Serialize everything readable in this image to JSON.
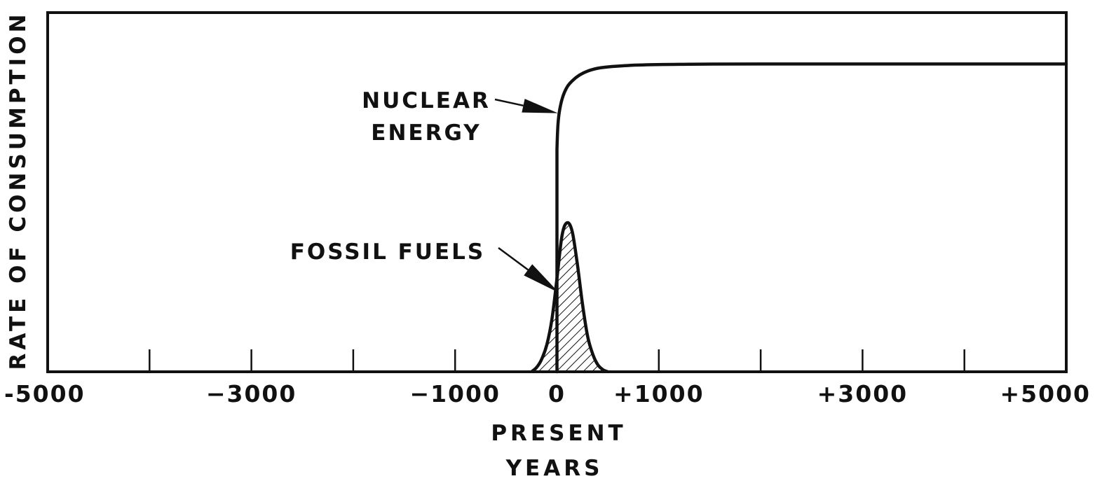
{
  "chart_data": {
    "type": "line",
    "title": "",
    "xlabel": "YEARS",
    "ylabel": "RATE OF CONSUMPTION",
    "xlim": [
      -5000,
      5000
    ],
    "ylim": [
      0,
      1
    ],
    "x_ticks": [
      -5000,
      -4000,
      -3000,
      -2000,
      -1000,
      0,
      1000,
      2000,
      3000,
      4000,
      5000
    ],
    "x_tick_labels": [
      {
        "x": -5000,
        "label": "-5000"
      },
      {
        "x": -3000,
        "label": "−3000"
      },
      {
        "x": -1000,
        "label": "−1000"
      },
      {
        "x": 0,
        "label": "0"
      },
      {
        "x": 1000,
        "label": "+1000"
      },
      {
        "x": 3000,
        "label": "+3000"
      },
      {
        "x": 5000,
        "label": "+5000"
      }
    ],
    "present_marker": {
      "x": 0,
      "label": "PRESENT"
    },
    "grid": false,
    "series": [
      {
        "name": "NUCLEAR ENERGY",
        "style": "line",
        "x": [
          0,
          0,
          10,
          30,
          60,
          100,
          150,
          220,
          300,
          400,
          550,
          800,
          1200,
          2000,
          5000
        ],
        "y": [
          0,
          0.62,
          0.69,
          0.735,
          0.768,
          0.793,
          0.81,
          0.826,
          0.837,
          0.845,
          0.85,
          0.854,
          0.856,
          0.857,
          0.857
        ]
      },
      {
        "name": "FOSSIL FUELS",
        "style": "hatched-area",
        "x": [
          -250,
          -200,
          -150,
          -100,
          -50,
          0,
          50,
          100,
          150,
          200,
          250,
          300,
          350,
          400,
          450,
          500
        ],
        "y": [
          0,
          0.012,
          0.035,
          0.075,
          0.145,
          0.26,
          0.38,
          0.415,
          0.39,
          0.3,
          0.19,
          0.1,
          0.05,
          0.02,
          0.006,
          0
        ]
      }
    ],
    "annotations": [
      {
        "text_lines": [
          "NUCLEAR",
          "ENERGY"
        ],
        "target_series": "NUCLEAR ENERGY",
        "target": {
          "x": 10,
          "y": 0.72
        }
      },
      {
        "text_lines": [
          "FOSSIL  FUELS"
        ],
        "target_series": "FOSSIL FUELS",
        "target": {
          "x": 20,
          "y": 0.22
        }
      }
    ],
    "colors": {
      "ink": "#111111",
      "background": "#ffffff"
    }
  }
}
